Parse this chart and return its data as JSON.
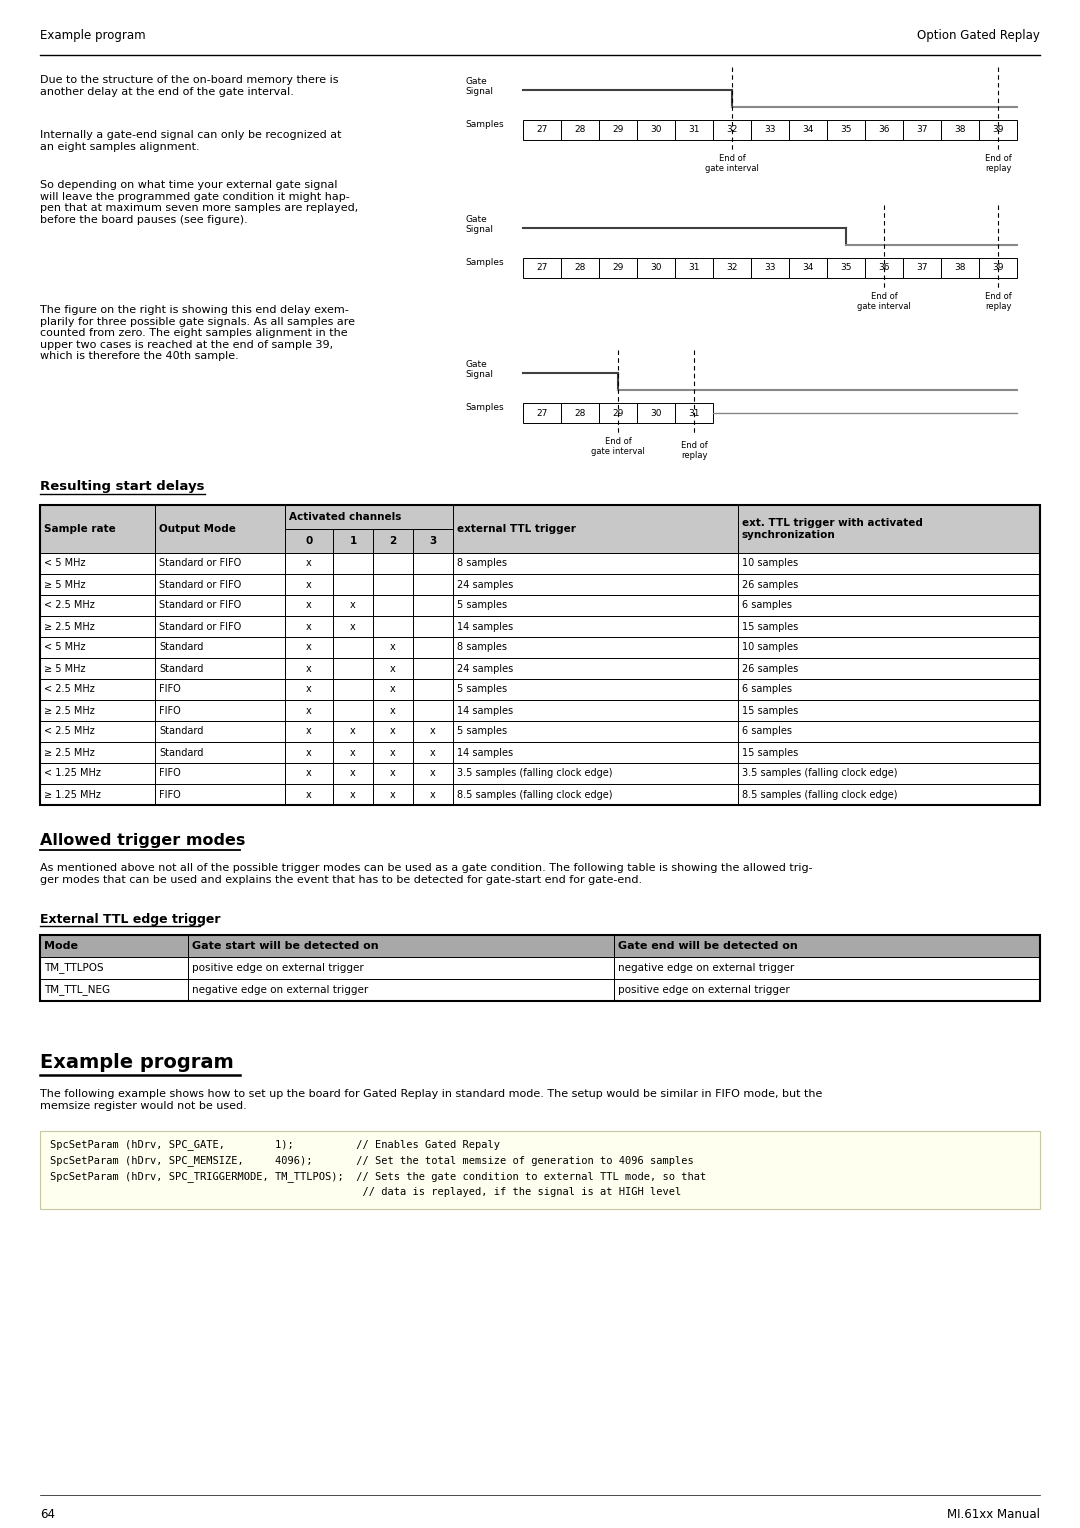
{
  "header_left": "Example program",
  "header_right": "Option Gated Replay",
  "page_number": "64",
  "page_number_right": "MI.61xx Manual",
  "body_text_1": "Due to the structure of the on-board memory there is\nanother delay at the end of the gate interval.",
  "body_text_2": "Internally a gate-end signal can only be recognized at\nan eight samples alignment.",
  "body_text_3": "So depending on what time your external gate signal\nwill leave the programmed gate condition it might hap-\npen that at maximum seven more samples are replayed,\nbefore the board pauses (see figure).",
  "body_text_4": "The figure on the right is showing this end delay exem-\nplarily for three possible gate signals. As all samples are\ncounted from zero. The eight samples alignment in the\nupper two cases is reached at the end of sample 39,\nwhich is therefore the 40th sample.",
  "section1_title": "Resulting start delays",
  "table1_rows": [
    [
      "< 5 MHz",
      "Standard or FIFO",
      "x",
      "",
      "",
      "",
      "8 samples",
      "10 samples"
    ],
    [
      "≥ 5 MHz",
      "Standard or FIFO",
      "x",
      "",
      "",
      "",
      "24 samples",
      "26 samples"
    ],
    [
      "< 2.5 MHz",
      "Standard or FIFO",
      "x",
      "x",
      "",
      "",
      "5 samples",
      "6 samples"
    ],
    [
      "≥ 2.5 MHz",
      "Standard or FIFO",
      "x",
      "x",
      "",
      "",
      "14 samples",
      "15 samples"
    ],
    [
      "< 5 MHz",
      "Standard",
      "x",
      "",
      "x",
      "",
      "8 samples",
      "10 samples"
    ],
    [
      "≥ 5 MHz",
      "Standard",
      "x",
      "",
      "x",
      "",
      "24 samples",
      "26 samples"
    ],
    [
      "< 2.5 MHz",
      "FIFO",
      "x",
      "",
      "x",
      "",
      "5 samples",
      "6 samples"
    ],
    [
      "≥ 2.5 MHz",
      "FIFO",
      "x",
      "",
      "x",
      "",
      "14 samples",
      "15 samples"
    ],
    [
      "< 2.5 MHz",
      "Standard",
      "x",
      "x",
      "x",
      "x",
      "5 samples",
      "6 samples"
    ],
    [
      "≥ 2.5 MHz",
      "Standard",
      "x",
      "x",
      "x",
      "x",
      "14 samples",
      "15 samples"
    ],
    [
      "< 1.25 MHz",
      "FIFO",
      "x",
      "x",
      "x",
      "x",
      "3.5 samples (falling clock edge)",
      "3.5 samples (falling clock edge)"
    ],
    [
      "≥ 1.25 MHz",
      "FIFO",
      "x",
      "x",
      "x",
      "x",
      "8.5 samples (falling clock edge)",
      "8.5 samples (falling clock edge)"
    ]
  ],
  "section2_title": "Allowed trigger modes",
  "section2_body": "As mentioned above not all of the possible trigger modes can be used as a gate condition. The following table is showing the allowed trig-\nger modes that can be used and explains the event that has to be detected for gate-start end for gate-end.",
  "section2a_title": "External TTL edge trigger",
  "table2_header": [
    "Mode",
    "Gate start will be detected on",
    "Gate end will be detected on"
  ],
  "table2_rows": [
    [
      "TM_TTLPOS",
      "positive edge on external trigger",
      "negative edge on external trigger"
    ],
    [
      "TM_TTL_NEG",
      "negative edge on external trigger",
      "positive edge on external trigger"
    ]
  ],
  "section3_title": "Example program",
  "section3_body": "The following example shows how to set up the board for Gated Replay in standard mode. The setup would be similar in FIFO mode, but the\nmemsize register would not be used.",
  "code_lines": [
    "SpcSetParam (hDrv, SPC_GATE,        1);          // Enables Gated Repaly",
    "SpcSetParam (hDrv, SPC_MEMSIZE,     4096);       // Set the total memsize of generation to 4096 samples",
    "SpcSetParam (hDrv, SPC_TRIGGERMODE, TM_TTLPOS);  // Sets the gate condition to external TTL mode, so that",
    "                                                  // data is replayed, if the signal is at HIGH level"
  ],
  "bg_color": "#ffffff",
  "table_header_bg": "#c8c8c8",
  "table2_header_bg": "#a8a8a8",
  "code_bg": "#fffff0",
  "code_border": "#c8c8a0"
}
